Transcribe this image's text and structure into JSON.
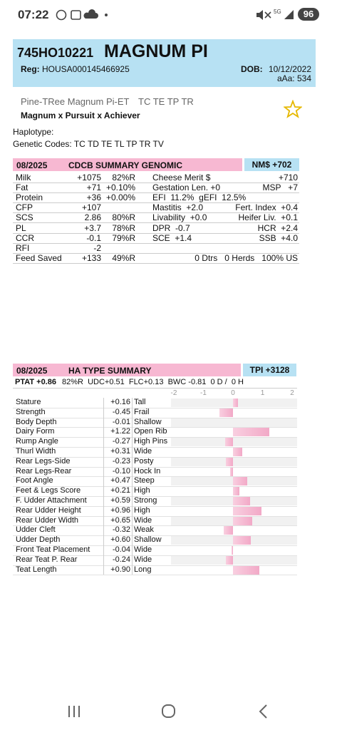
{
  "status_bar": {
    "time": "07:22",
    "network": "5G",
    "battery": "96"
  },
  "header": {
    "id": "745HO10221",
    "name": "MAGNUM PI",
    "reg_label": "Reg:",
    "reg": "HOUSA000145466925",
    "dob_label": "DOB:",
    "dob": "10/12/2022",
    "aaa": "aAa: 534"
  },
  "animal": {
    "full_name": "Pine-TRee Magnum Pi-ET",
    "codes": "TC TE TP TR",
    "pedigree": "Magnum x Pursuit x Achiever",
    "haplotype": "Haplotype:",
    "genetic_codes": "Genetic Codes: TC TD TE TL TP TR TV"
  },
  "cdcb": {
    "date": "08/2025",
    "title": "CDCB SUMMARY GENOMIC",
    "index": "NM$ +702",
    "rows": [
      {
        "trait": "Milk",
        "value": "+1075",
        "rel": "82%R",
        "mid": "Cheese Merit $",
        "end": "+710"
      },
      {
        "trait": "Fat",
        "value": "+71",
        "rel": "+0.10%",
        "mid": "Gestation Len. +0",
        "end": "MSP   +7"
      },
      {
        "trait": "Protein",
        "value": "+36",
        "rel": "+0.00%",
        "mid": "EFI  11.2%  gEFI  12.5%"
      },
      {
        "trait": "CFP",
        "value": "+107",
        "mid": "Mastitis  +2.0",
        "end": "Fert. Index  +0.4"
      },
      {
        "trait": "SCS",
        "value": "2.86",
        "rel": "80%R",
        "mid": "Livability  +0.0",
        "end": "Heifer Liv.  +0.1"
      },
      {
        "trait": "PL",
        "value": "+3.7",
        "rel": "78%R",
        "mid": "DPR  -0.7",
        "end": "HCR  +2.4"
      },
      {
        "trait": "CCR",
        "value": "-0.1",
        "rel": "79%R",
        "mid": "SCE  +1.4",
        "end": "SSB  +4.0"
      },
      {
        "trait": "RFI",
        "value": "-2"
      },
      {
        "trait": "Feed Saved",
        "value": "+133",
        "rel": "49%R",
        "end": "0 Dtrs   0 Herds   100% US"
      }
    ]
  },
  "type": {
    "date": "08/2025",
    "title": "HA TYPE SUMMARY",
    "index": "TPI +3128",
    "ptat": "PTAT +0.86",
    "summary": "82%R  UDC+0.51  FLC+0.13  BWC -0.81  0 D /  0 H",
    "xticks": [
      -2,
      -1,
      0,
      1,
      2
    ],
    "traits": [
      {
        "name": "Stature",
        "value": 0.16,
        "value_label": "+0.16",
        "desc": "Tall"
      },
      {
        "name": "Strength",
        "value": -0.45,
        "value_label": "-0.45",
        "desc": "Frail"
      },
      {
        "name": "Body Depth",
        "value": -0.01,
        "value_label": "-0.01",
        "desc": "Shallow"
      },
      {
        "name": "Dairy Form",
        "value": 1.22,
        "value_label": "+1.22",
        "desc": "Open Rib"
      },
      {
        "name": "Rump Angle",
        "value": -0.27,
        "value_label": "-0.27",
        "desc": "High Pins"
      },
      {
        "name": "Thurl Width",
        "value": 0.31,
        "value_label": "+0.31",
        "desc": "Wide"
      },
      {
        "name": "Rear Legs-Side",
        "value": -0.23,
        "value_label": "-0.23",
        "desc": "Posty"
      },
      {
        "name": "Rear Legs-Rear",
        "value": -0.1,
        "value_label": "-0.10",
        "desc": "Hock In"
      },
      {
        "name": "Foot Angle",
        "value": 0.47,
        "value_label": "+0.47",
        "desc": "Steep"
      },
      {
        "name": "Feet & Legs Score",
        "value": 0.21,
        "value_label": "+0.21",
        "desc": "High"
      },
      {
        "name": "F. Udder Attachment",
        "value": 0.59,
        "value_label": "+0.59",
        "desc": "Strong"
      },
      {
        "name": "Rear Udder Height",
        "value": 0.96,
        "value_label": "+0.96",
        "desc": "High"
      },
      {
        "name": "Rear Udder Width",
        "value": 0.65,
        "value_label": "+0.65",
        "desc": "Wide"
      },
      {
        "name": "Udder Cleft",
        "value": -0.32,
        "value_label": "-0.32",
        "desc": "Weak"
      },
      {
        "name": "Udder Depth",
        "value": 0.6,
        "value_label": "+0.60",
        "desc": "Shallow"
      },
      {
        "name": "Front Teat Placement",
        "value": -0.04,
        "value_label": "-0.04",
        "desc": "Wide"
      },
      {
        "name": "Rear Teat P. Rear",
        "value": -0.24,
        "value_label": "-0.24",
        "desc": "Wide"
      },
      {
        "name": "Teat Length",
        "value": 0.9,
        "value_label": "+0.90",
        "desc": "Long"
      }
    ]
  }
}
